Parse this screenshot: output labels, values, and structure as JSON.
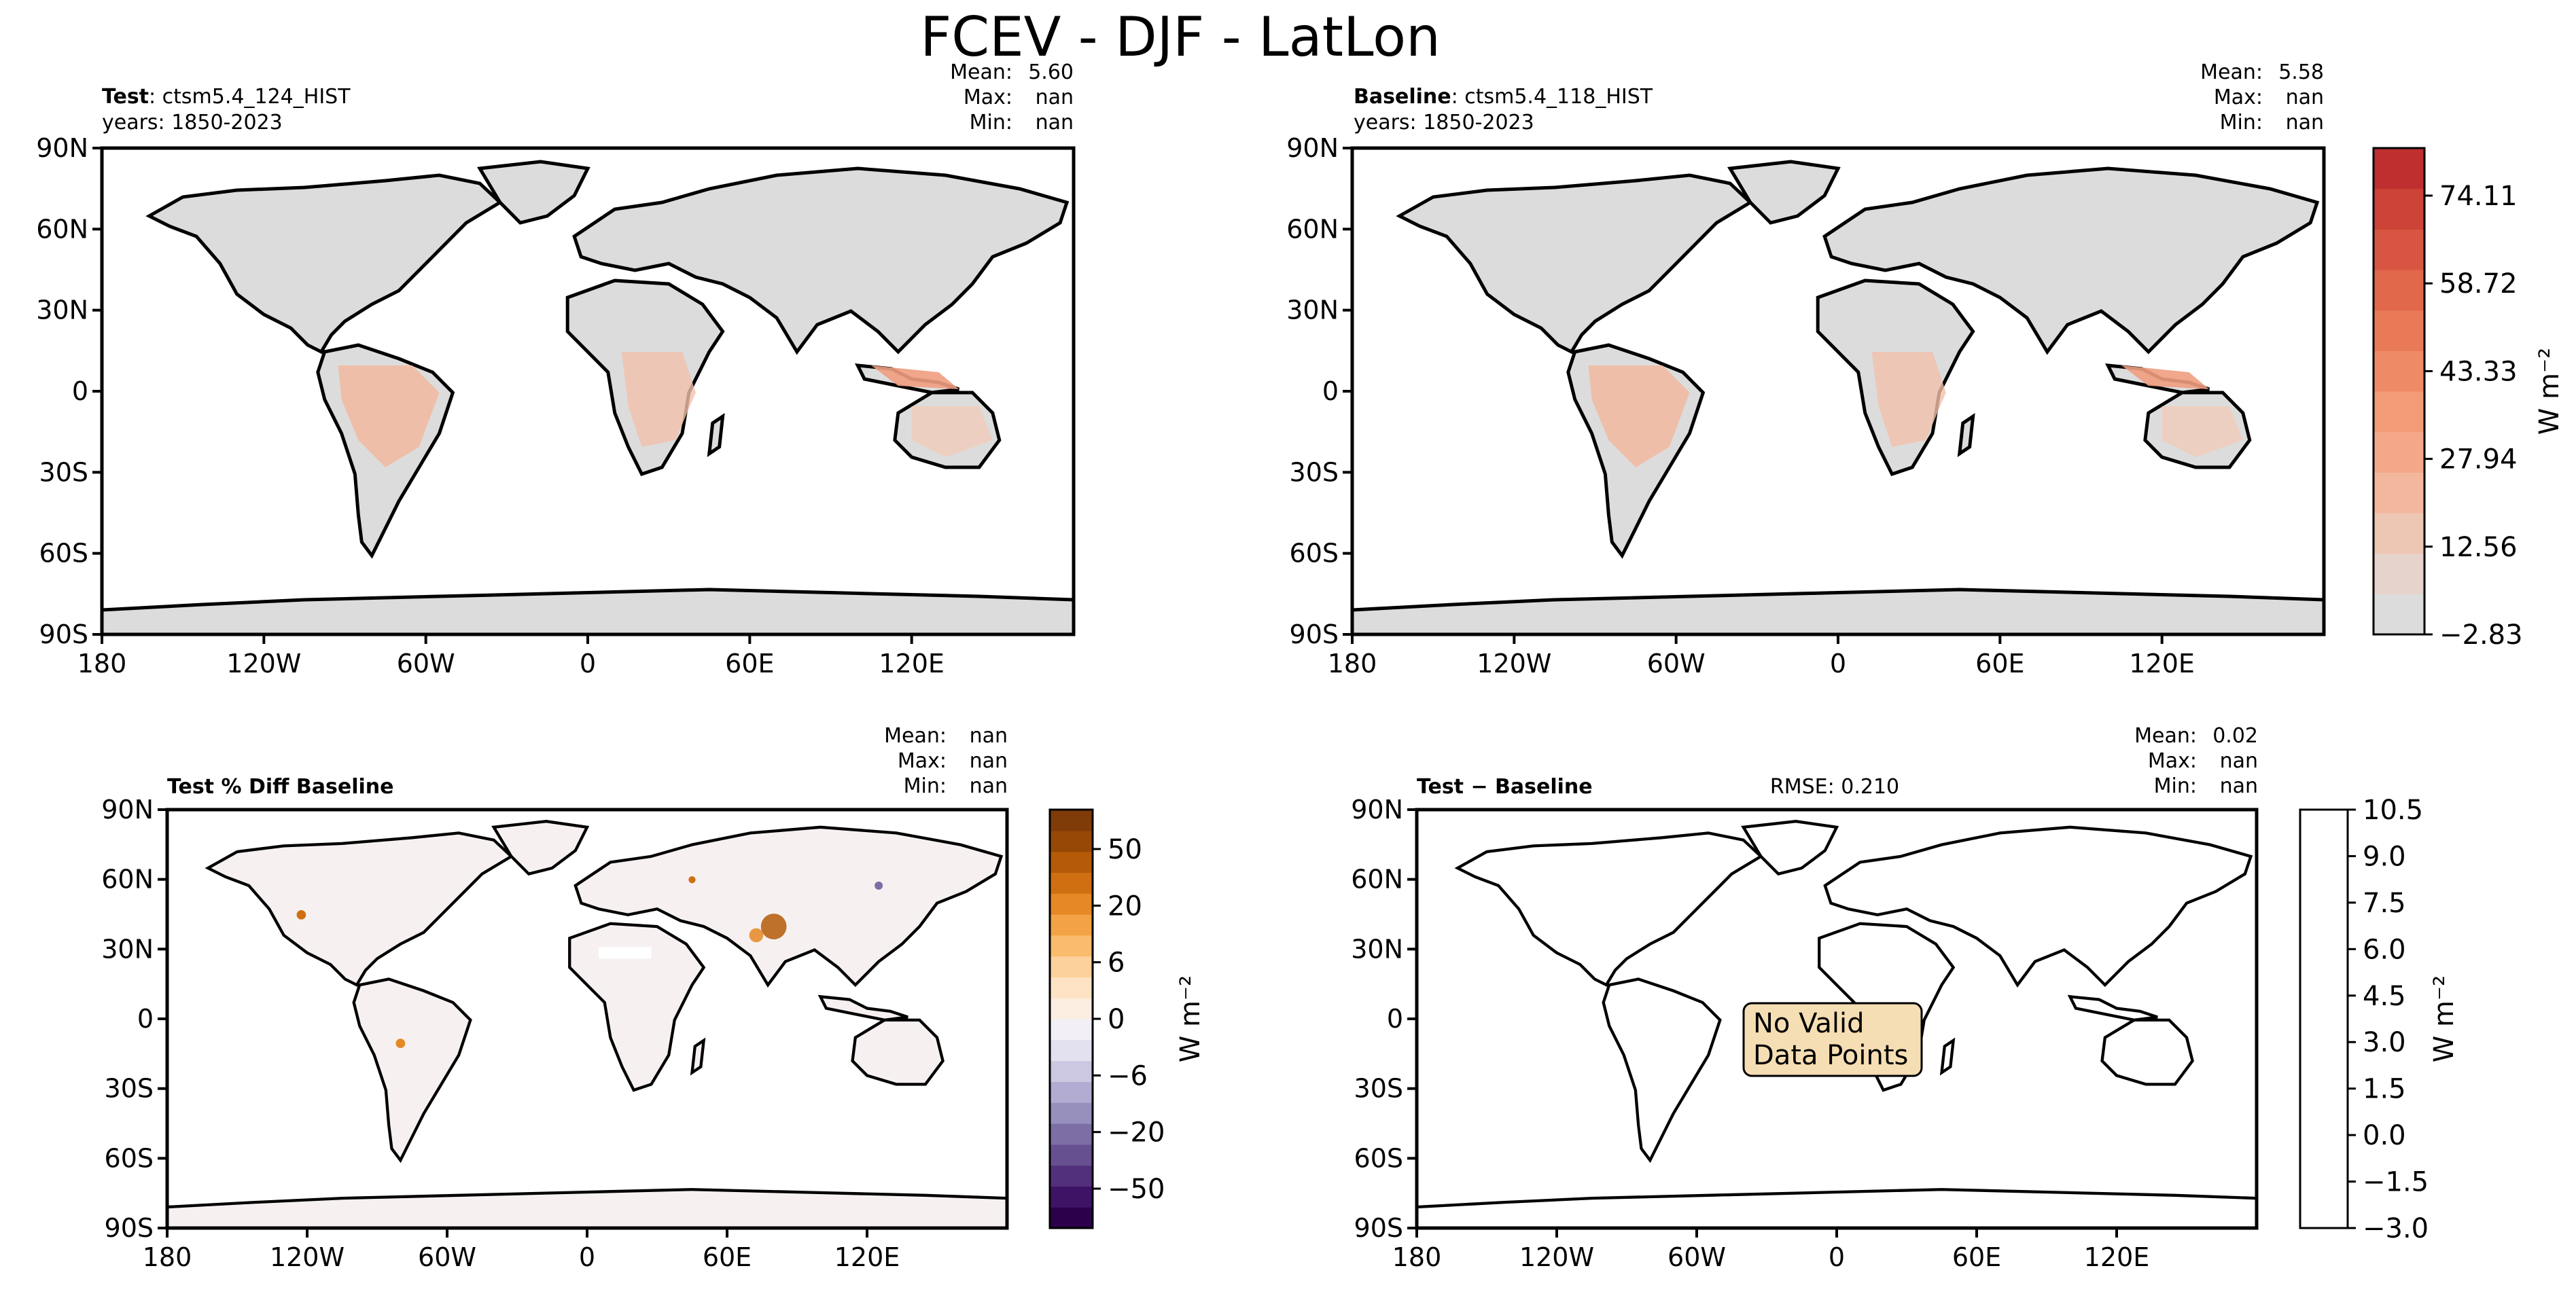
{
  "figure": {
    "title": "FCEV - DJF - LatLon",
    "lat_ticks": [
      "90N",
      "60N",
      "30N",
      "0",
      "30S",
      "60S",
      "90S"
    ],
    "lon_ticks": [
      "180",
      "120W",
      "60W",
      "0",
      "60E",
      "120E"
    ]
  },
  "panels": {
    "test": {
      "label_bold": "Test",
      "label_rest": ": ctsm5.4_124_HIST",
      "years": "years: 1850-2023",
      "stats": [
        {
          "k": "Mean:",
          "v": "5.60"
        },
        {
          "k": "Max:",
          "v": "nan"
        },
        {
          "k": "Min:",
          "v": "nan"
        }
      ]
    },
    "baseline": {
      "label_bold": "Baseline",
      "label_rest": ": ctsm5.4_118_HIST",
      "years": "years: 1850-2023",
      "stats": [
        {
          "k": "Mean:",
          "v": "5.58"
        },
        {
          "k": "Max:",
          "v": "nan"
        },
        {
          "k": "Min:",
          "v": "nan"
        }
      ]
    },
    "pctdiff": {
      "label_bold": "Test % Diff Baseline",
      "stats": [
        {
          "k": "Mean:",
          "v": "nan"
        },
        {
          "k": "Max:",
          "v": "nan"
        },
        {
          "k": "Min:",
          "v": "nan"
        }
      ]
    },
    "diff": {
      "label_bold": "Test − Baseline",
      "rmse": "RMSE: 0.210",
      "no_data": [
        "No Valid",
        "Data Points"
      ],
      "stats": [
        {
          "k": "Mean:",
          "v": "0.02"
        },
        {
          "k": "Max:",
          "v": "nan"
        },
        {
          "k": "Min:",
          "v": "nan"
        }
      ]
    }
  },
  "colorbars": {
    "top": {
      "label": "W m⁻²",
      "ticks": [
        "74.11",
        "58.72",
        "43.33",
        "27.94",
        "12.56",
        "−2.83"
      ],
      "colors": [
        "#dcdcdc",
        "#e6d3cb",
        "#eec6b4",
        "#f3b79d",
        "#f5a889",
        "#f39a77",
        "#ef8a66",
        "#e97a58",
        "#e1684b",
        "#d85641",
        "#cd4338",
        "#c02f2f"
      ]
    },
    "pct": {
      "label": "W m⁻²",
      "ticks": [
        "50",
        "20",
        "6",
        "0",
        "−6",
        "−20",
        "−50"
      ],
      "colors": [
        "#2d004b",
        "#3e1366",
        "#52307c",
        "#66508f",
        "#7d6ea5",
        "#978fbc",
        "#b2abd2",
        "#ccc8e2",
        "#e3e0ef",
        "#f2f0f6",
        "#fbeee0",
        "#fde3c3",
        "#fdd19b",
        "#fbbb6c",
        "#f3a345",
        "#e58825",
        "#d06f12",
        "#b45a08",
        "#974807",
        "#7f3b08"
      ]
    },
    "diff": {
      "label": "W m⁻²",
      "ticks": [
        "10.5",
        "9.0",
        "7.5",
        "6.0",
        "4.5",
        "3.0",
        "1.5",
        "0.0",
        "−1.5",
        "−3.0"
      ]
    }
  },
  "colors": {
    "land_gray": "#dcdcdc",
    "annotation_fill": "#f5deb3"
  }
}
